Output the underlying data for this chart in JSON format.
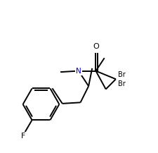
{
  "bg_color": "#ffffff",
  "line_color": "#000000",
  "text_color_black": "#000000",
  "text_color_N": "#0000cd",
  "label_F": "F",
  "label_O": "O",
  "label_N": "N",
  "label_Br1": "Br",
  "label_Br2": "Br",
  "figsize": [
    2.25,
    2.17
  ],
  "dpi": 100
}
